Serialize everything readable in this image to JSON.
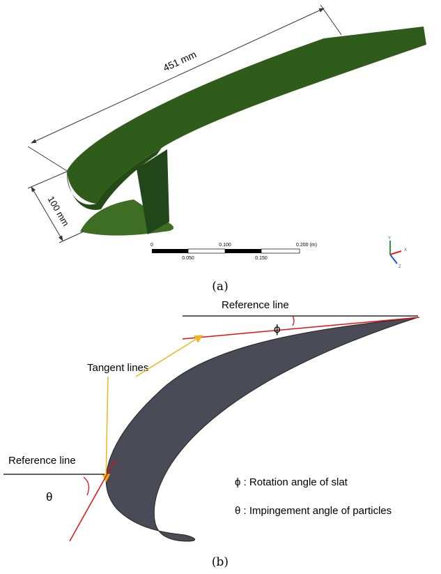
{
  "panel_a": {
    "caption": "(a)",
    "dimensions": [
      "451 mm",
      "100 mm"
    ],
    "scale_bar": {
      "labels_top": [
        "0",
        "0.100",
        "0.200 (m)"
      ],
      "labels_bottom": [
        "0.050",
        "0.150"
      ]
    },
    "triad": [
      "Y",
      "X",
      "Z"
    ]
  },
  "panel_b": {
    "caption": "(b)",
    "reference_line_top": "Reference line",
    "reference_line_left": "Reference line",
    "tangent_lines": "Tangent lines",
    "phi": "ϕ",
    "theta": "θ",
    "legend": [
      "ϕ : Rotation angle of slat",
      "θ : Impingement angle of particles"
    ]
  }
}
